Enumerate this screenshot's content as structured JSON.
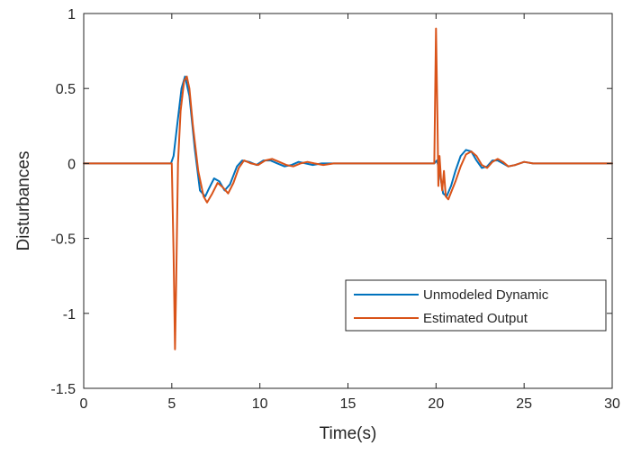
{
  "chart_data": {
    "type": "line",
    "title": "",
    "xlabel": "Time(s)",
    "ylabel": "Disturbances",
    "xlim": [
      0,
      30
    ],
    "ylim": [
      -1.5,
      1
    ],
    "xticks": [
      0,
      5,
      10,
      15,
      20,
      25,
      30
    ],
    "xtick_labels": [
      "0",
      "5",
      "10",
      "15",
      "20",
      "25",
      "30"
    ],
    "yticks": [
      -1.5,
      -1,
      -0.5,
      0,
      0.5,
      1
    ],
    "ytick_labels": [
      "-1.5",
      "-1",
      "-0.5",
      "0",
      "0.5",
      "1"
    ],
    "grid": false,
    "legend_position": "bottom-right",
    "series": [
      {
        "name": "Unmodeled Dynamic",
        "color": "#0072BD",
        "x": [
          0,
          4.95,
          5.1,
          5.3,
          5.55,
          5.75,
          6.0,
          6.3,
          6.6,
          6.9,
          7.1,
          7.4,
          7.7,
          8.0,
          8.3,
          8.7,
          9.0,
          9.4,
          9.8,
          10.2,
          10.6,
          11.0,
          11.4,
          11.8,
          12.2,
          12.6,
          13.0,
          13.5,
          14.0,
          15.0,
          16.0,
          17.0,
          18.0,
          19.0,
          19.9,
          20.05,
          20.2,
          20.4,
          20.6,
          20.85,
          21.1,
          21.4,
          21.7,
          22.0,
          22.3,
          22.6,
          22.9,
          23.2,
          23.5,
          23.8,
          24.1,
          24.5,
          25.0,
          25.5,
          26.0,
          27.0,
          28.0,
          29.0,
          30.0
        ],
        "y": [
          0,
          0,
          0.05,
          0.25,
          0.5,
          0.58,
          0.45,
          0.1,
          -0.18,
          -0.22,
          -0.17,
          -0.1,
          -0.12,
          -0.18,
          -0.14,
          -0.02,
          0.02,
          0.01,
          -0.01,
          0.02,
          0.02,
          0.0,
          -0.02,
          -0.01,
          0.01,
          0.0,
          -0.01,
          0.0,
          0.0,
          0.0,
          0.0,
          0.0,
          0.0,
          0.0,
          0.0,
          0.02,
          -0.05,
          -0.2,
          -0.22,
          -0.15,
          -0.05,
          0.05,
          0.09,
          0.08,
          0.02,
          -0.03,
          -0.02,
          0.02,
          0.02,
          0.0,
          -0.02,
          -0.01,
          0.01,
          0.0,
          0.0,
          0.0,
          0.0,
          0.0,
          0.0
        ]
      },
      {
        "name": "Estimated Output",
        "color": "#D95319",
        "x": [
          0,
          5.0,
          5.1,
          5.18,
          5.25,
          5.35,
          5.5,
          5.7,
          5.85,
          6.0,
          6.2,
          6.5,
          6.8,
          7.0,
          7.3,
          7.6,
          7.9,
          8.2,
          8.5,
          8.8,
          9.1,
          9.5,
          9.9,
          10.3,
          10.7,
          11.1,
          11.5,
          11.9,
          12.3,
          12.7,
          13.1,
          13.6,
          14.2,
          15.0,
          16.0,
          17.0,
          18.0,
          19.0,
          19.9,
          20.0,
          20.08,
          20.13,
          20.2,
          20.28,
          20.35,
          20.45,
          20.55,
          20.7,
          20.9,
          21.1,
          21.4,
          21.7,
          22.0,
          22.3,
          22.6,
          22.9,
          23.2,
          23.5,
          23.8,
          24.1,
          24.5,
          25.0,
          25.5,
          26.0,
          27.0,
          28.0,
          29.0,
          30.0
        ],
        "y": [
          0,
          0,
          -0.6,
          -1.24,
          -0.8,
          0.0,
          0.35,
          0.55,
          0.58,
          0.5,
          0.25,
          -0.05,
          -0.22,
          -0.26,
          -0.2,
          -0.13,
          -0.16,
          -0.2,
          -0.13,
          -0.03,
          0.02,
          0.0,
          -0.01,
          0.02,
          0.03,
          0.01,
          -0.01,
          -0.02,
          0.0,
          0.01,
          0.0,
          -0.01,
          0.0,
          0.0,
          0.0,
          0.0,
          0.0,
          0.0,
          0.0,
          0.9,
          0.3,
          -0.15,
          0.05,
          -0.1,
          -0.18,
          -0.05,
          -0.22,
          -0.24,
          -0.18,
          -0.12,
          -0.02,
          0.06,
          0.08,
          0.05,
          -0.01,
          -0.03,
          0.01,
          0.03,
          0.01,
          -0.02,
          -0.01,
          0.01,
          0.0,
          0.0,
          0.0,
          0.0,
          0.0,
          0.0
        ]
      }
    ]
  }
}
